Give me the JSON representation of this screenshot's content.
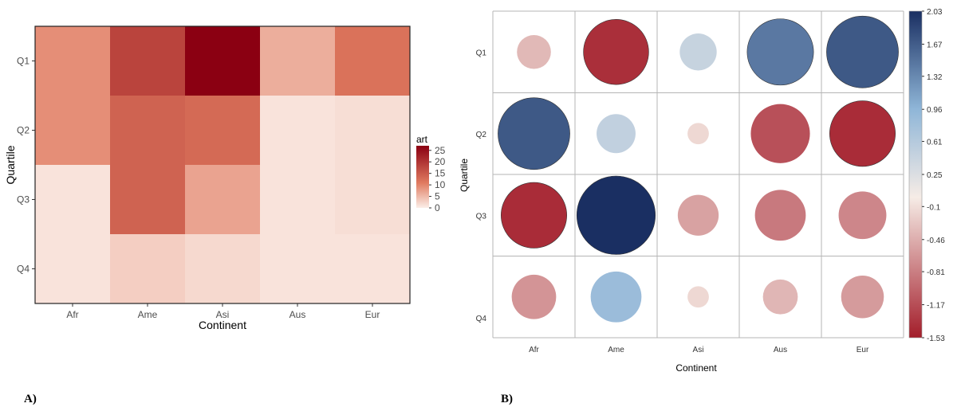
{
  "chart_data": [
    {
      "type": "heatmap",
      "panel_label": "A)",
      "xlabel": "Continent",
      "ylabel": "Quartile",
      "categories": [
        "Afr",
        "Ame",
        "Asi",
        "Aus",
        "Eur"
      ],
      "rows": [
        "Q1",
        "Q2",
        "Q3",
        "Q4"
      ],
      "values": [
        [
          9,
          18,
          27,
          6,
          12
        ],
        [
          9,
          14,
          13,
          1,
          1.5
        ],
        [
          1,
          14,
          7,
          1,
          1.5
        ],
        [
          1,
          3,
          2,
          1,
          1
        ]
      ],
      "legend": {
        "title": "art",
        "ticks": [
          25,
          20,
          15,
          10,
          5,
          0
        ],
        "min": 0,
        "max": 27
      },
      "colors": {
        "low": "#fbeee8",
        "mid": "#e07b60",
        "high": "#8b0012"
      }
    },
    {
      "type": "scatter",
      "subtype": "correlation-circle-matrix",
      "panel_label": "B)",
      "xlabel": "Continent",
      "ylabel": "Quartile",
      "categories": [
        "Afr",
        "Ame",
        "Asi",
        "Aus",
        "Eur"
      ],
      "rows": [
        "Q1",
        "Q2",
        "Q3",
        "Q4"
      ],
      "row_labels_display": [
        "Q1",
        "Q2",
        "Q3",
        "Q4"
      ],
      "values": [
        [
          -0.38,
          -1.4,
          0.45,
          1.45,
          1.7
        ],
        [
          1.7,
          0.5,
          -0.15,
          -1.15,
          -1.42
        ],
        [
          -1.42,
          2.03,
          -0.55,
          -0.85,
          -0.75
        ],
        [
          -0.65,
          0.85,
          -0.15,
          -0.4,
          -0.6
        ]
      ],
      "legend": {
        "ticks": [
          "2.03",
          "1.67",
          "1.32",
          "0.96",
          "0.61",
          "0.25",
          "-0.1",
          "-0.46",
          "-0.81",
          "-1.17",
          "-1.53"
        ],
        "min": -1.53,
        "max": 2.03
      },
      "colors": {
        "negative": "#a31d2a",
        "neutral": "#f6ece6",
        "positive": "#1a2f62"
      }
    }
  ]
}
